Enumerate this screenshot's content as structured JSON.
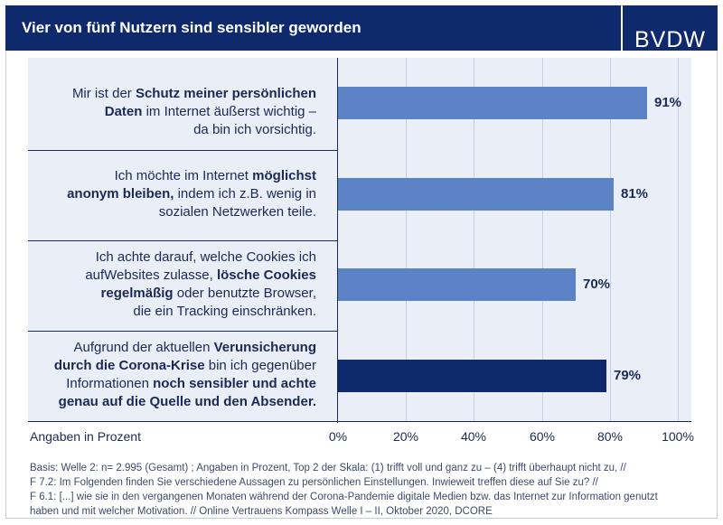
{
  "header": {
    "title": "Vier von fünf Nutzern sind sensibler geworden"
  },
  "logo": {
    "text": "BVDW"
  },
  "colors": {
    "header": "#0e2a6c",
    "bar_light": "#5b82c4",
    "bar_dark": "#0e2a6c",
    "chart_bg": "#e9eef7"
  },
  "chart_data": {
    "type": "bar",
    "orientation": "horizontal",
    "categories": [
      "Mir ist der Schutz meiner persönlichen Daten im Internet äußerst wichtig – da bin ich vorsichtig.",
      "Ich möchte im Internet möglichst anonym bleiben, indem ich z.B. wenig in sozialen Netzwerken teile.",
      "Ich achte darauf, welche Cookies ich aufWebsites zulasse, lösche Cookies regelmäßig oder benutzte Browser, die ein Tracking einschränken.",
      "Aufgrund der aktuellen Verunsicherung durch die Corona-Krise bin ich gegenüber Informationen noch sensibler und achte genau auf die Quelle und den Absender."
    ],
    "values": [
      91,
      81,
      70,
      79
    ],
    "value_labels": [
      "91%",
      "81%",
      "70%",
      "79%"
    ],
    "xlim": [
      0,
      100
    ],
    "tick_labels": [
      "0%",
      "20%",
      "40%",
      "60%",
      "80%",
      "100%"
    ],
    "xlabel": "Angaben in Prozent",
    "grid": true,
    "highlighted_index": 3
  },
  "labels": [
    [
      {
        "t": "Mir ist der ",
        "b": false
      },
      {
        "t": "Schutz meiner persönlichen",
        "b": true
      },
      {
        "br": true
      },
      {
        "t": "Daten",
        "b": true
      },
      {
        "t": " im Internet äußerst wichtig –",
        "b": false
      },
      {
        "br": true
      },
      {
        "t": "da bin ich vorsichtig.",
        "b": false
      }
    ],
    [
      {
        "t": "Ich möchte im Internet ",
        "b": false
      },
      {
        "t": "möglichst",
        "b": true
      },
      {
        "br": true
      },
      {
        "t": "anonym bleiben,",
        "b": true
      },
      {
        "t": " indem ich z.B. wenig in",
        "b": false
      },
      {
        "br": true
      },
      {
        "t": "sozialen Netzwerken teile.",
        "b": false
      }
    ],
    [
      {
        "t": "Ich achte darauf, welche Cookies ich",
        "b": false
      },
      {
        "br": true
      },
      {
        "t": "aufWebsites zulasse, ",
        "b": false
      },
      {
        "t": "lösche Cookies",
        "b": true
      },
      {
        "br": true
      },
      {
        "t": "regelmäßig",
        "b": true
      },
      {
        "t": " oder benutzte Browser,",
        "b": false
      },
      {
        "br": true
      },
      {
        "t": "die ein Tracking einschränken.",
        "b": false
      }
    ],
    [
      {
        "t": "Aufgrund der aktuellen ",
        "b": false
      },
      {
        "t": "Verunsicherung",
        "b": true
      },
      {
        "br": true
      },
      {
        "t": "durch die Corona-Krise",
        "b": true
      },
      {
        "t": " bin ich gegenüber",
        "b": false
      },
      {
        "br": true
      },
      {
        "t": "Informationen ",
        "b": false
      },
      {
        "t": "noch sensibler und achte",
        "b": true
      },
      {
        "br": true
      },
      {
        "t": "genau auf die Quelle und den Absender.",
        "b": true
      }
    ]
  ],
  "footnote": {
    "lines": [
      "Basis: Welle 2: n= 2.995 (Gesamt) ; Angaben in Prozent, Top 2 der Skala: (1) trifft voll und ganz zu – (4) trifft überhaupt nicht zu, //",
      "F 7.2: Im Folgenden finden Sie verschiedene Aussagen zu persönlichen Einstellungen. Inwieweit treffen diese auf Sie zu? //",
      "F 6.1: [...] wie sie in den vergangenen Monaten während der Corona-Pandemie digitale Medien bzw. das Internet zur Information genutzt",
      "haben und mit welcher Motivation. // Online Vertrauens Kompass Welle I – II, Oktober 2020, DCORE"
    ]
  }
}
